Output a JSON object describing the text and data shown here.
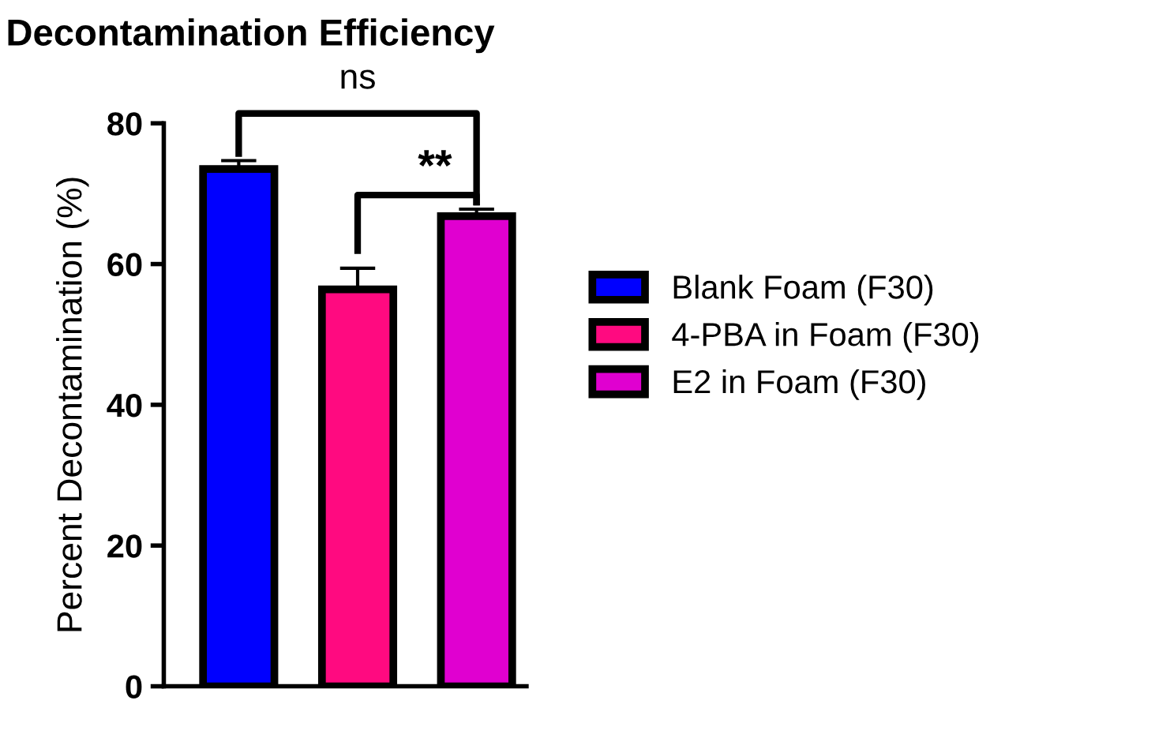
{
  "chart_data": {
    "type": "bar",
    "title": "Decontamination Efficiency",
    "ylabel": "Percent Decontamination (%)",
    "categories": [
      null,
      null,
      null
    ],
    "series": [
      {
        "name": "Blank Foam (F30)",
        "color": "#0000ff",
        "values": [
          73.5,
          null,
          null
        ],
        "errors": [
          1.2,
          null,
          null
        ]
      },
      {
        "name": "4-PBA in Foam (F30)",
        "color": "#ff0a80",
        "values": [
          null,
          56.4,
          null
        ],
        "errors": [
          null,
          3.0,
          null
        ]
      },
      {
        "name": "E2 in Foam (F30)",
        "color": "#e000d0",
        "values": [
          null,
          null,
          66.8
        ],
        "errors": [
          null,
          null,
          1.0
        ]
      }
    ],
    "ylim": [
      0,
      80
    ],
    "yticks": [
      0,
      20,
      40,
      60,
      80
    ],
    "grid": false,
    "legend": "right",
    "annotations": [
      "ns",
      "**"
    ]
  }
}
